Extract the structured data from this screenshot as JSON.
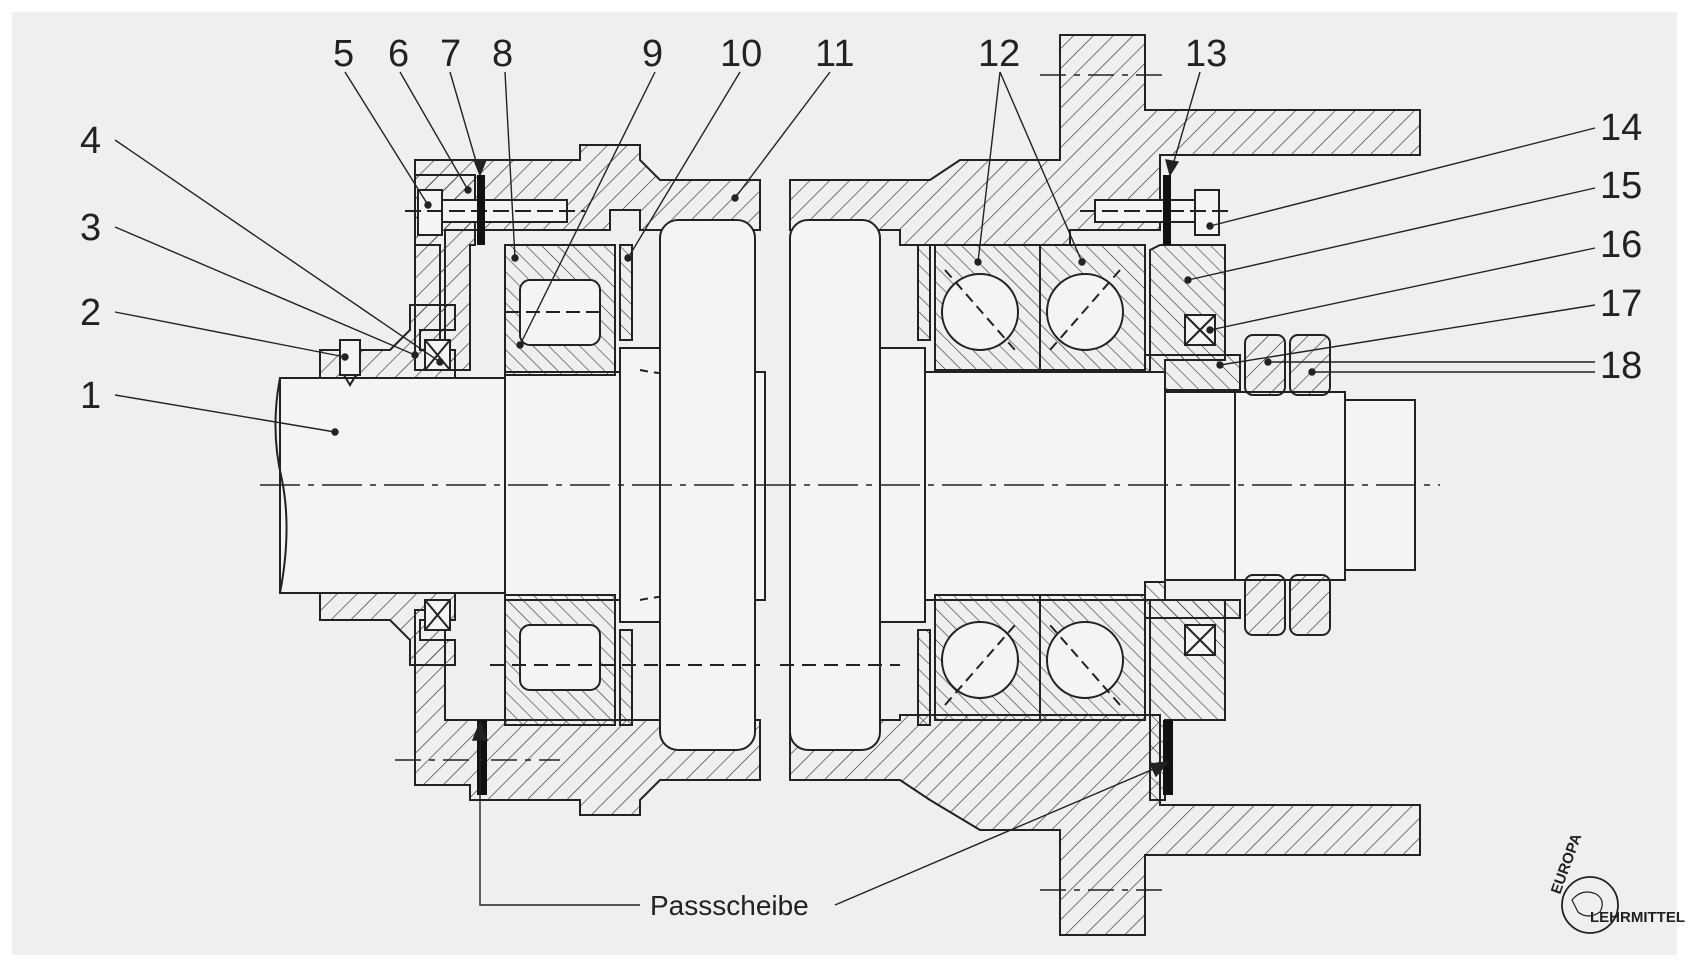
{
  "callouts": [
    {
      "id": "1",
      "text": "1"
    },
    {
      "id": "2",
      "text": "2"
    },
    {
      "id": "3",
      "text": "3"
    },
    {
      "id": "4",
      "text": "4"
    },
    {
      "id": "5",
      "text": "5"
    },
    {
      "id": "6",
      "text": "6"
    },
    {
      "id": "7",
      "text": "7"
    },
    {
      "id": "8",
      "text": "8"
    },
    {
      "id": "9",
      "text": "9"
    },
    {
      "id": "10",
      "text": "10"
    },
    {
      "id": "11",
      "text": "11"
    },
    {
      "id": "12",
      "text": "12"
    },
    {
      "id": "13",
      "text": "13"
    },
    {
      "id": "14",
      "text": "14"
    },
    {
      "id": "15",
      "text": "15"
    },
    {
      "id": "16",
      "text": "16"
    },
    {
      "id": "17",
      "text": "17"
    },
    {
      "id": "18",
      "text": "18"
    }
  ],
  "caption": "Passscheibe",
  "logo": {
    "line1": "EUROPA",
    "line2": "LEHRMITTEL"
  },
  "colors": {
    "background": "#ffffff",
    "panel": "#efefef",
    "ink": "#222222",
    "hatch": "#333333",
    "shim": "#111111"
  }
}
